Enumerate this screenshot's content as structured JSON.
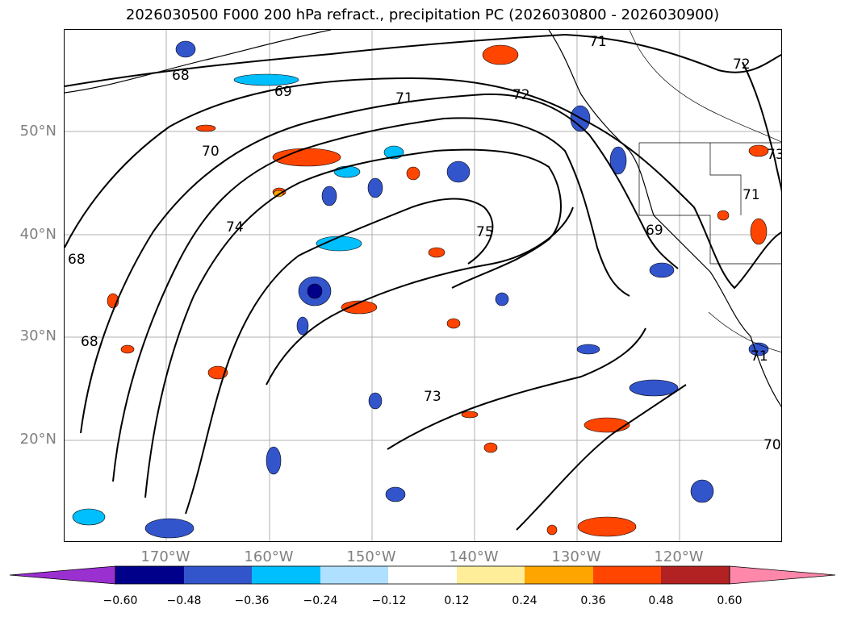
{
  "title": "2026030500 F000 200 hPa refract., precipitation PC (2026030800 - 2026030900)",
  "lat_labels": [
    "50°N",
    "40°N",
    "30°N",
    "20°N"
  ],
  "lon_labels": [
    "170°W",
    "160°W",
    "150°W",
    "140°W",
    "130°W",
    "120°W"
  ],
  "contour_labels": [
    "68",
    "69",
    "70",
    "71",
    "72",
    "71",
    "72",
    "73",
    "74",
    "75",
    "73",
    "69",
    "68",
    "68",
    "70",
    "71",
    "71"
  ],
  "colorbar": {
    "ticks": [
      "−0.60",
      "−0.48",
      "−0.36",
      "−0.24",
      "−0.12",
      "0.12",
      "0.24",
      "0.36",
      "0.48",
      "0.60"
    ],
    "colors": [
      "#9b30d0",
      "#00008b",
      "#3355cc",
      "#00bfff",
      "#b0e0ff",
      "#ffffff",
      "#ffee99",
      "#ffa500",
      "#ff4500",
      "#b22222",
      "#ff88aa"
    ]
  }
}
